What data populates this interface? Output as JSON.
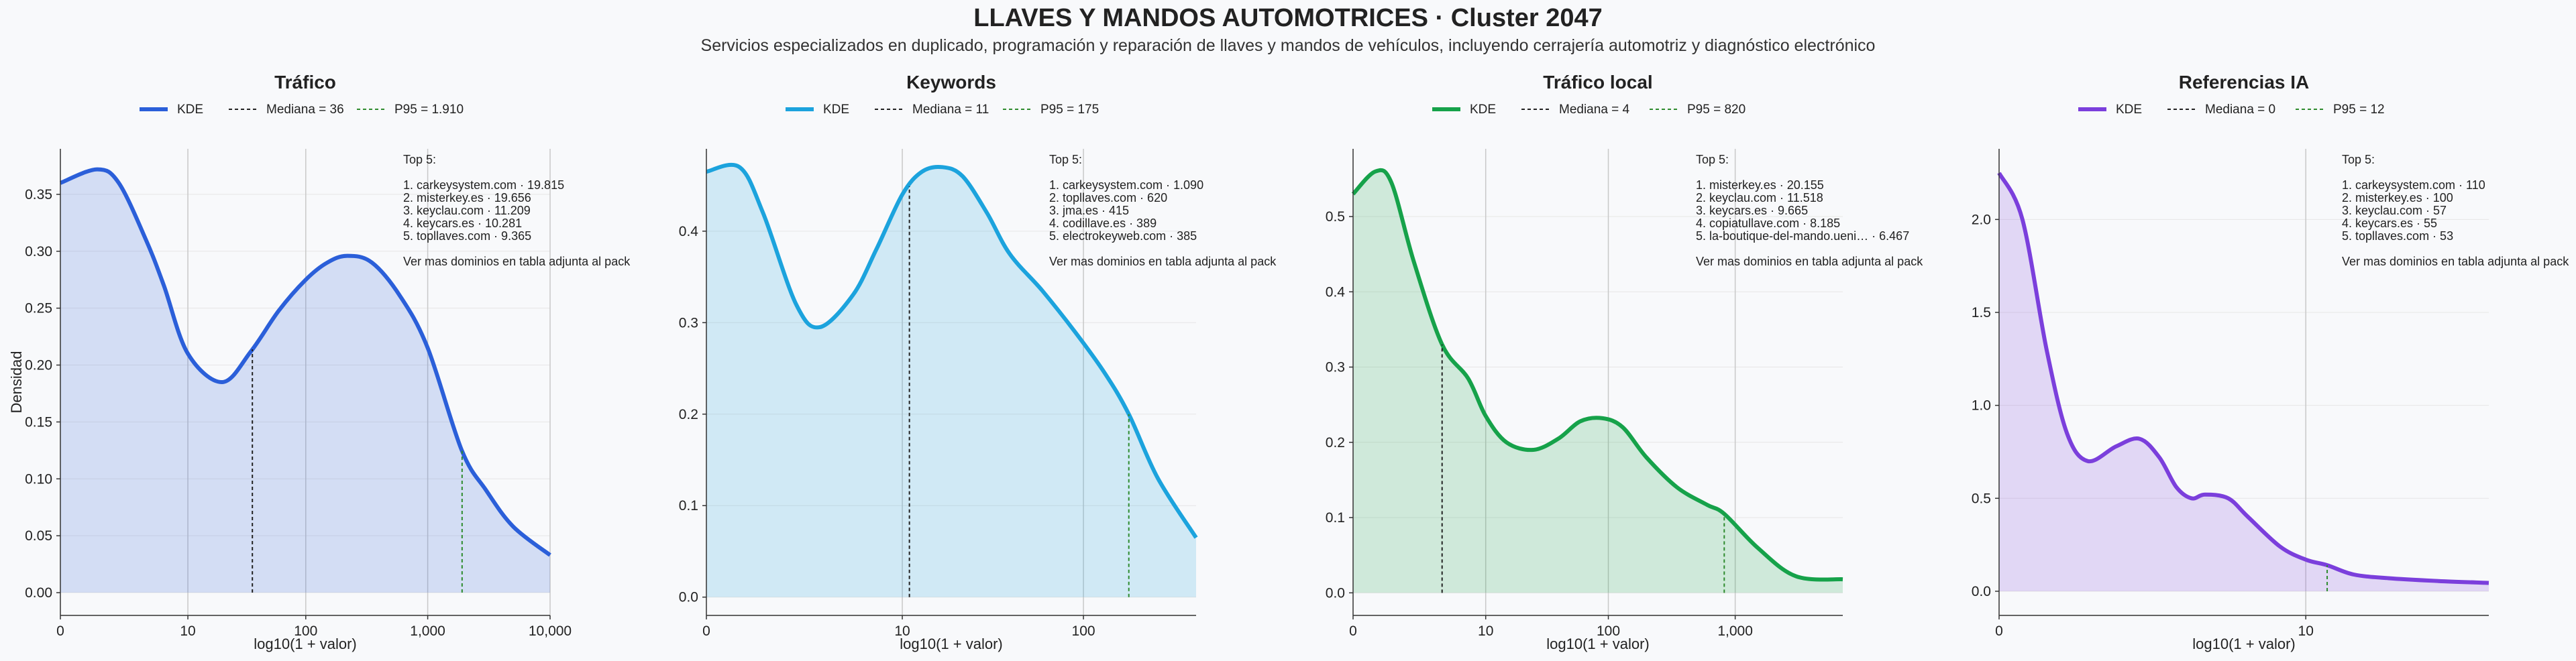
{
  "title": "LLAVES Y MANDOS AUTOMOTRICES · Cluster 2047",
  "subtitle": "Servicios especializados en duplicado, programación y reparación de llaves y mandos de vehículos, incluyendo cerrajería automotriz y diagnóstico electrónico",
  "colors": {
    "trafico": "#2b5fd9",
    "keywords": "#1ca3dd",
    "trafico_local": "#16a24a",
    "referencias_ia": "#7b3fdc",
    "median_line": "#222222",
    "p95_line": "#2e8b2e",
    "grid": "#c8c8c8"
  },
  "chart_data": [
    {
      "type": "area",
      "title": "Tráfico",
      "xlabel": "log10(1 + valor)",
      "ylabel": "Densidad",
      "x_scale": "log10(1+x)",
      "x_ticks": [
        "0",
        "10",
        "100",
        "1,000",
        "10,000"
      ],
      "x_tick_values": [
        0,
        10,
        100,
        1000,
        10000
      ],
      "x_range": [
        0,
        10000
      ],
      "y_ticks": [
        "0.00",
        "0.05",
        "0.10",
        "0.15",
        "0.20",
        "0.25",
        "0.30",
        "0.35"
      ],
      "ylim": [
        -0.02,
        0.39
      ],
      "grid": "x-vertical",
      "legend": {
        "kde": "KDE",
        "median": "Mediana = 36",
        "p95": "P95 = 1.910"
      },
      "median": 36,
      "p95": 1910,
      "series": [
        {
          "name": "KDE",
          "x": [
            0,
            1,
            2,
            4,
            6,
            10,
            20,
            35,
            60,
            100,
            150,
            220,
            350,
            600,
            1000,
            1900,
            3000,
            5000,
            10000
          ],
          "y": [
            0.36,
            0.372,
            0.36,
            0.31,
            0.27,
            0.21,
            0.185,
            0.212,
            0.248,
            0.275,
            0.29,
            0.296,
            0.29,
            0.26,
            0.215,
            0.125,
            0.09,
            0.058,
            0.033
          ]
        }
      ],
      "top_header": "Top 5:",
      "top": [
        "1. carkeysystem.com · 19.815",
        "2. misterkey.es · 19.656",
        "3. keyclau.com · 11.209",
        "4. keycars.es · 10.281",
        "5. topllaves.com · 9.365"
      ],
      "more": "Ver mas dominios en tabla adjunta al pack"
    },
    {
      "type": "area",
      "title": "Keywords",
      "xlabel": "log10(1 + valor)",
      "ylabel": "",
      "x_scale": "log10(1+x)",
      "x_ticks": [
        "0",
        "10",
        "100"
      ],
      "x_tick_values": [
        0,
        10,
        100
      ],
      "x_range": [
        0,
        400
      ],
      "y_ticks": [
        "0.0",
        "0.1",
        "0.2",
        "0.3",
        "0.4"
      ],
      "ylim": [
        -0.02,
        0.49
      ],
      "grid": "x-vertical",
      "legend": {
        "kde": "KDE",
        "median": "Mediana = 11",
        "p95": "P95 = 175"
      },
      "median": 11,
      "p95": 175,
      "series": [
        {
          "name": "KDE",
          "x": [
            0,
            0.5,
            1,
            2,
            3,
            5,
            7,
            10,
            13,
            17,
            22,
            30,
            40,
            60,
            90,
            130,
            175,
            250,
            400
          ],
          "y": [
            0.465,
            0.47,
            0.42,
            0.32,
            0.295,
            0.33,
            0.38,
            0.44,
            0.465,
            0.47,
            0.46,
            0.42,
            0.375,
            0.335,
            0.29,
            0.245,
            0.2,
            0.13,
            0.065
          ]
        }
      ],
      "top_header": "Top 5:",
      "top": [
        "1. carkeysystem.com · 1.090",
        "2. topllaves.com · 620",
        "3. jma.es · 415",
        "4. codillave.es · 389",
        "5. electrokeyweb.com · 385"
      ],
      "more": "Ver mas dominios en tabla adjunta al pack"
    },
    {
      "type": "area",
      "title": "Tráfico local",
      "xlabel": "log10(1 + valor)",
      "ylabel": "",
      "x_scale": "log10(1+x)",
      "x_ticks": [
        "0",
        "10",
        "100",
        "1,000"
      ],
      "x_tick_values": [
        0,
        10,
        100,
        1000
      ],
      "x_range": [
        0,
        7000
      ],
      "y_ticks": [
        "0.0",
        "0.1",
        "0.2",
        "0.3",
        "0.4",
        "0.5"
      ],
      "ylim": [
        -0.03,
        0.59
      ],
      "grid": "x-vertical",
      "legend": {
        "kde": "KDE",
        "median": "Mediana = 4",
        "p95": "P95 = 820"
      },
      "median": 4,
      "p95": 820,
      "series": [
        {
          "name": "KDE",
          "x": [
            0,
            0.5,
            1,
            2,
            4,
            7,
            10,
            15,
            25,
            40,
            60,
            90,
            130,
            200,
            350,
            600,
            820,
            1500,
            3000,
            7000
          ],
          "y": [
            0.53,
            0.56,
            0.545,
            0.44,
            0.33,
            0.285,
            0.235,
            0.2,
            0.19,
            0.205,
            0.228,
            0.232,
            0.22,
            0.18,
            0.14,
            0.117,
            0.105,
            0.06,
            0.022,
            0.018
          ]
        }
      ],
      "top_header": "Top 5:",
      "top": [
        "1. misterkey.es · 20.155",
        "2. keyclau.com · 11.518",
        "3. keycars.es · 9.665",
        "4. copiatullave.com · 8.185",
        "5. la-boutique-del-mando.ueni… · 6.467"
      ],
      "more": "Ver mas dominios en tabla adjunta al pack"
    },
    {
      "type": "area",
      "title": "Referencias IA",
      "xlabel": "log10(1 + valor)",
      "ylabel": "",
      "x_scale": "log10(1+x)",
      "x_ticks": [
        "0",
        "10"
      ],
      "x_tick_values": [
        0,
        10
      ],
      "x_range": [
        0,
        45
      ],
      "y_ticks": [
        "0.0",
        "0.5",
        "1.0",
        "1.5",
        "2.0"
      ],
      "ylim": [
        -0.13,
        2.38
      ],
      "grid": "x-vertical",
      "legend": {
        "kde": "KDE",
        "median": "Mediana = 0",
        "p95": "P95 = 12"
      },
      "median": 0,
      "p95": 12,
      "series": [
        {
          "name": "KDE",
          "x": [
            0,
            0.2,
            0.45,
            0.7,
            1,
            1.5,
            2,
            2.5,
            3,
            3.5,
            4,
            5,
            6,
            8,
            10,
            12,
            15,
            20,
            30,
            45
          ],
          "y": [
            2.25,
            2.0,
            1.3,
            0.85,
            0.7,
            0.78,
            0.82,
            0.72,
            0.56,
            0.5,
            0.52,
            0.5,
            0.4,
            0.24,
            0.17,
            0.14,
            0.09,
            0.07,
            0.055,
            0.045
          ]
        }
      ],
      "top_header": "Top 5:",
      "top": [
        "1. carkeysystem.com · 110",
        "2. misterkey.es · 100",
        "3. keyclau.com · 57",
        "4. keycars.es · 55",
        "5. topllaves.com · 53"
      ],
      "more": "Ver mas dominios en tabla adjunta al pack"
    }
  ]
}
